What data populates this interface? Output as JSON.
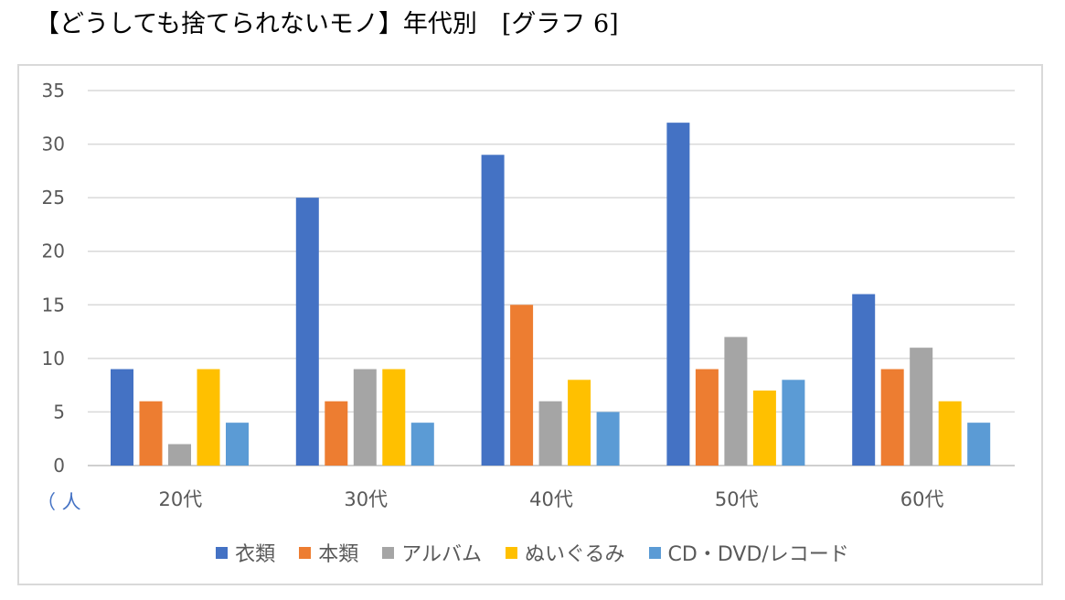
{
  "title": "【どうしても捨てられないモノ】年代別　[グラフ 6]",
  "unit_label": "（ 人",
  "chart_data": {
    "type": "bar",
    "categories": [
      "20代",
      "30代",
      "40代",
      "50代",
      "60代"
    ],
    "series": [
      {
        "name": "衣類",
        "color": "#4472c4",
        "values": [
          9,
          25,
          29,
          32,
          16
        ]
      },
      {
        "name": "本類",
        "color": "#ed7d31",
        "values": [
          6,
          6,
          15,
          9,
          9
        ]
      },
      {
        "name": "アルバム",
        "color": "#a5a5a5",
        "values": [
          2,
          9,
          6,
          12,
          11
        ]
      },
      {
        "name": "ぬいぐるみ",
        "color": "#ffc000",
        "values": [
          9,
          9,
          8,
          7,
          6
        ]
      },
      {
        "name": "CD・DVD/レコード",
        "color": "#5b9bd5",
        "values": [
          4,
          4,
          5,
          8,
          4
        ]
      }
    ],
    "ylim": [
      0,
      35
    ],
    "yticks": [
      0,
      5,
      10,
      15,
      20,
      25,
      30,
      35
    ],
    "grid": true,
    "legend": "bottom"
  }
}
